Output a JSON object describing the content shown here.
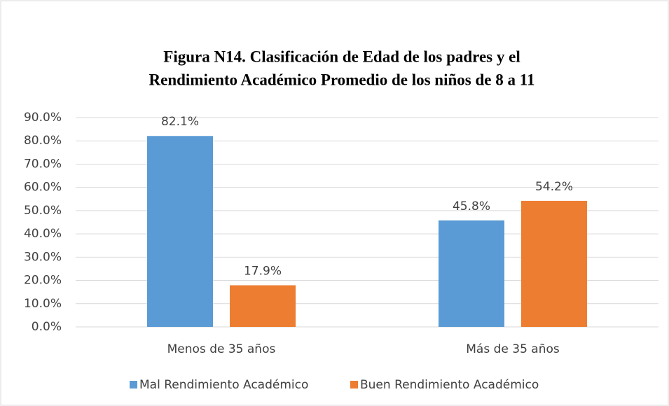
{
  "chart_data": {
    "type": "bar",
    "title": [
      "Figura N14. Clasificación de Edad de los padres y el",
      "Rendimiento Académico Promedio de los niños de 8 a 11"
    ],
    "categories": [
      "Menos de 35 años",
      "Más de 35 años"
    ],
    "series": [
      {
        "name": "Mal Rendimiento Académico",
        "color": "#5b9bd5",
        "values": [
          82.1,
          45.8
        ],
        "value_labels": [
          "82.1%",
          "45.8%"
        ]
      },
      {
        "name": "Buen Rendimiento Académico",
        "color": "#ed7d31",
        "values": [
          17.9,
          54.2
        ],
        "value_labels": [
          "17.9%",
          "54.2%"
        ]
      }
    ],
    "ylim": [
      0,
      90
    ],
    "yticks": [
      {
        "value": 0,
        "label": "0.0%"
      },
      {
        "value": 10,
        "label": "10.0%"
      },
      {
        "value": 20,
        "label": "20.0%"
      },
      {
        "value": 30,
        "label": "30.0%"
      },
      {
        "value": 40,
        "label": "40.0%"
      },
      {
        "value": 50,
        "label": "50.0%"
      },
      {
        "value": 60,
        "label": "60.0%"
      },
      {
        "value": 70,
        "label": "70.0%"
      },
      {
        "value": 80,
        "label": "80.0%"
      },
      {
        "value": 90,
        "label": "90.0%"
      }
    ],
    "grid": true,
    "legend": "bottom"
  }
}
